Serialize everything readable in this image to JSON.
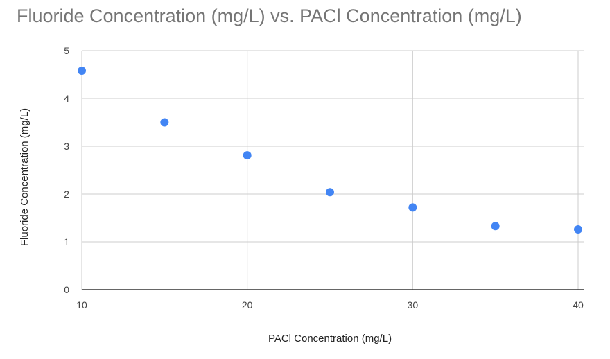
{
  "chart_data": {
    "type": "scatter",
    "title": "Fluoride Concentration (mg/L) vs. PACl Concentration (mg/L)",
    "xlabel": "PACl Concentration (mg/L)",
    "ylabel": "Fluoride Concentration (mg/L)",
    "xlim": [
      10,
      40
    ],
    "ylim": [
      0,
      5
    ],
    "x_ticks": [
      10,
      20,
      30,
      40
    ],
    "y_ticks": [
      0,
      1,
      2,
      3,
      4,
      5
    ],
    "grid": true,
    "legend": "none",
    "series": [
      {
        "color": "#4285f4",
        "points": [
          {
            "x": 10,
            "y": 4.58
          },
          {
            "x": 15,
            "y": 3.5
          },
          {
            "x": 20,
            "y": 2.81
          },
          {
            "x": 25,
            "y": 2.04
          },
          {
            "x": 30,
            "y": 1.72
          },
          {
            "x": 35,
            "y": 1.33
          },
          {
            "x": 40,
            "y": 1.26
          }
        ]
      }
    ]
  }
}
